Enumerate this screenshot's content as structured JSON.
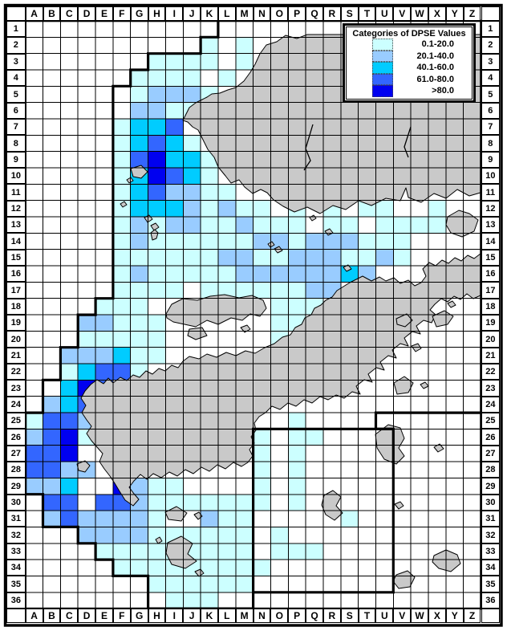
{
  "legend": {
    "title": "Categories of DPSE Values",
    "categories": [
      {
        "label": "0.1-20.0",
        "color": "#CCFFFF"
      },
      {
        "label": "20.1-40.0",
        "color": "#99CCFF"
      },
      {
        "label": "40.1-60.0",
        "color": "#00CCFF"
      },
      {
        "label": "61.0-80.0",
        "color": "#3366FF"
      },
      {
        "label": ">80.0",
        "color": "#0000F0"
      }
    ]
  },
  "grid": {
    "column_letters": "ABCDEFGHIJKLMNOPQRSTUVWXYZ",
    "row_numbers_start": 1,
    "row_count": 36
  },
  "colors": {
    "land": "#C9C9C9",
    "water": "#FFFFFF",
    "line": "#000000"
  },
  "cell_categories": [
    "..........................",
    "..........1.1.............",
    ".......1111.1.............",
    "......1111.1..............",
    "......12221...............",
    "......2211................",
    ".....1334.................",
    ".....13431................",
    ".....145331...............",
    ".....135431...............",
    ".....1342211..............",
    ".....133321211.1.1.11..1..",
    ".....12122112111.11.1111..",
    ".....12111111221222111....",
    ".....11111122112221121....",
    ".....121111122222232......",
    ".....1111.11111122........",
    "....111.......111.........",
    "...22111......11..........",
    "...11111......1...........",
    "..222311..................",
    "..13441...................",
    "..354.....................",
    ".234......................",
    "1442...........1..........",
    "2451.........1.11.........",
    "445..........1.1..........",
    "4422.........1.1..........",
    "223..5211....1.1..........",
    ".44.4421111111.1..........",
    ".2422221..211.....1.......",
    "...2222111111.1...........",
    "....111111111.111.........",
    ".....111111111............",
    ".......111111.............",
    "........111..............."
  ],
  "map_shapes": {
    "land": [
      "228,150 236,134 244,128 252,124 258,121 264,117 274,116 284,112 294,109 304,101 312,90 318,80 324,67 332,56 345,52 356,44 370,48 383,43 599,43 599,240 585,244 570,236 556,247 541,241 525,252 509,246 506,234 499,250 481,247 463,256 447,250 431,261 415,256 399,266 383,258 367,264 353,257 341,249 333,240 325,236 315,241 305,233 298,224 288,228 281,219 272,208 267,196 259,186 253,174 247,162 240,158 234,152",
      "207,391 214,379 228,372 246,374 262,369 280,367 298,371 314,368 328,374 332,384 324,394 312,391 302,399 288,396 272,404 258,399 244,407 230,404 216,401 208,396",
      "236,410 252,408 258,418 244,423 234,418",
      "300,408 308,405 312,410 305,414",
      "141,477 150,470 158,474 166,467 174,470 182,462 190,466 198,459 206,462 214,455 222,458 228,450 236,444 248,447 258,441 270,445 282,439 294,443 306,437 318,440 330,433 342,428 352,420 362,417 368,408 376,404 380,396 388,392 392,384 400,380 406,374 414,370 420,362 428,357 436,352 444,348 452,344 463,350 473,345 481,350 491,346 499,353 509,349 517,356 525,352 531,344 527,335 535,327 543,331 551,324 559,328 567,321 575,325 583,318 591,322 599,316 599,368 590,372 582,366 574,373 566,369 558,376 550,372 542,379 536,386 543,392 538,402 528,399 519,406 524,416 514,413 504,421 509,431 499,428 489,436 494,446 484,443 474,451 479,461 469,458 459,466 464,476 454,473 444,481 449,491 439,488 429,496 419,492 409,498 399,494 389,502 379,498 369,506 359,502 349,510 339,506 331,514 323,519 317,527 319,536 313,544 317,552 311,560 315,568 309,576 301,581 291,576 281,584 271,579 261,587 251,582 241,590 231,585 221,593 211,588 201,595 191,590 183,597 175,591 167,599 161,607 167,615 173,622 166,630 156,623 149,612 143,602 137,593 130,584 124,575 128,565 121,557 114,549 108,540 114,531 108,523 102,514 107,505 101,496 106,487 113,479 121,473 129,478 135,471",
      "96,578 106,574 112,580 106,588 98,586",
      "206,638 220,631 233,639 226,649 210,647",
      "242,641 248,638 252,643 247,647",
      "209,676 226,668 240,677 234,690 245,699 231,708 214,703 207,689",
      "194,672 199,669 202,674 197,677",
      "243,712 250,709 254,714 248,718",
      "404,617 415,611 425,619 419,630 427,639 417,648 406,641 401,629",
      "494,397 507,391 514,399 505,407 495,404",
      "539,394 554,387 565,394 558,404 544,407",
      "558,378 564,375 568,380 562,383",
      "513,431 521,428 525,434 518,438",
      "491,477 504,469 515,477 509,489 495,491",
      "524,479 530,476 534,481 528,484",
      "468,541 484,529 499,533 504,546 497,558 504,568 494,578 479,572 470,558",
      "541,557 548,553 553,559 546,563",
      "492,628 499,625 503,630 497,634",
      "541,692 556,685 570,691 574,702 562,712 547,708 539,700",
      "494,716 508,711 517,719 511,731 497,733 490,724",
      "558,270 572,262 585,266 596,274 591,288 576,295 562,290 556,280",
      "180,271 186,268 190,273 184,277",
      "188,281 194,278 198,283 192,287",
      "188,290 193,286 197,290 195,297 190,299",
      "163,210 176,206 184,214 176,222 166,220",
      "158,224 163,221 166,225 161,228",
      "150,254 155,251 158,255 153,258",
      "342,310 348,307 352,312 346,315",
      "334,304 339,301 342,305 337,308",
      "405,288 411,285 415,290 409,293",
      "386,271 391,268 394,272 389,275",
      "428,333 434,330 438,335 432,338"
    ],
    "rivers": [
      "M390 155 L381 185 L387 200 L379 212",
      "M512 158 L504 183 L509 196"
    ],
    "boundaries": [
      "M271.9 26 V46.3 H250.1 V66.7 H184.6 V87 H162.7 V107.3 H140.9 V371.7 H119.1 V392.1 H97.2 V432.7 H75.4 V473.4 H53.5 V514.1 H31.7 V615.7 H53.5 V656.4 H97.2 V676.8 H119.1 V697.1 H140.9 V717.4 H184.6 V758.1",
      "M184.6 758.1 H315.6 V737.8 H490.3 V534.4 H468.5 V514.1 H599.5",
      "M315.6 737.8 V534.4 H490.3"
    ]
  }
}
